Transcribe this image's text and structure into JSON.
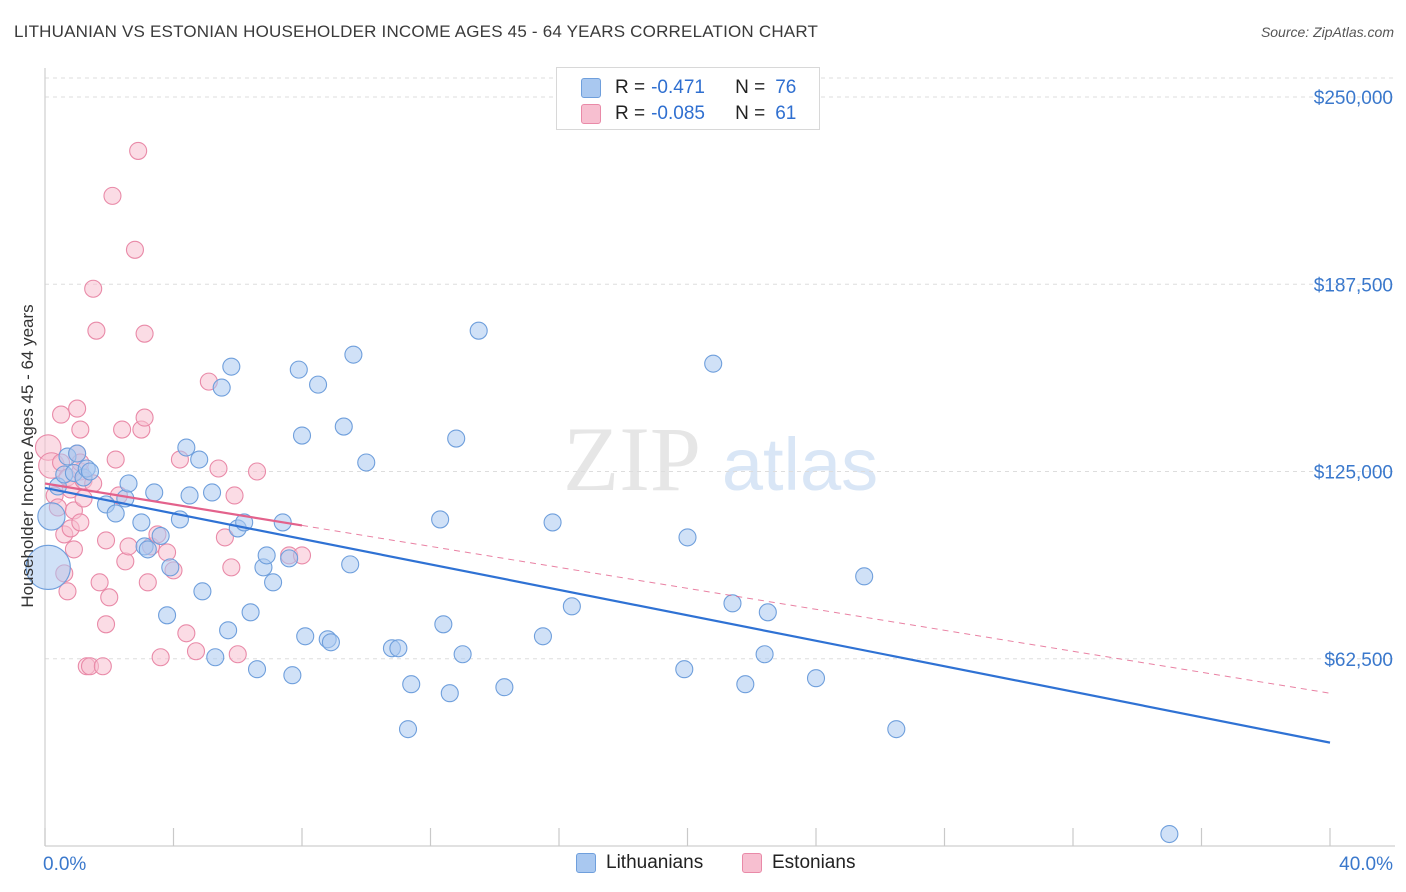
{
  "title": "LITHUANIAN VS ESTONIAN HOUSEHOLDER INCOME AGES 45 - 64 YEARS CORRELATION CHART",
  "source": "Source: ZipAtlas.com",
  "watermark": {
    "zip": "ZIP",
    "atlas": "atlas"
  },
  "legend": {
    "rows": [
      {
        "r_label": "R =",
        "r_value": "-0.471",
        "n_label": "N =",
        "n_value": "76"
      },
      {
        "r_label": "R =",
        "r_value": "-0.085",
        "n_label": "N =",
        "n_value": "61"
      }
    ]
  },
  "colors": {
    "blue_fill": "#a9c8f0",
    "blue_stroke": "#6f9fdc",
    "blue_line": "#2f72d4",
    "pink_fill": "#f7bfd0",
    "pink_stroke": "#e98aa8",
    "pink_line": "#e3628c",
    "tick_text": "#3a78cc",
    "grid": "#dddddd"
  },
  "chart_data": {
    "type": "scatter",
    "title": "LITHUANIAN VS ESTONIAN HOUSEHOLDER INCOME AGES 45 - 64 YEARS CORRELATION CHART",
    "xlabel": "",
    "ylabel": "Householder Income Ages 45 - 64 years",
    "xlim": [
      0,
      40
    ],
    "ylim": [
      0,
      262500
    ],
    "x_tick_labels": [
      "0.0%",
      "40.0%"
    ],
    "y_ticks": [
      62500,
      125000,
      187500,
      250000
    ],
    "y_tick_labels": [
      "$62,500",
      "$125,000",
      "$187,500",
      "$250,000"
    ],
    "grid": true,
    "legend_position": "top-center",
    "series": [
      {
        "name": "Lithuanians",
        "r": -0.471,
        "n": 76,
        "trend": {
          "x": [
            0,
            40
          ],
          "y": [
            119500,
            34500
          ],
          "style": "solid"
        },
        "points": [
          [
            0.1,
            93000,
            2.6
          ],
          [
            0.2,
            110000,
            1.6
          ],
          [
            0.4,
            120000,
            1
          ],
          [
            0.6,
            124000,
            1
          ],
          [
            0.7,
            130000,
            1
          ],
          [
            0.9,
            124500,
            1
          ],
          [
            1.0,
            131000,
            1
          ],
          [
            1.2,
            123000,
            1
          ],
          [
            1.3,
            126000,
            1
          ],
          [
            1.4,
            125000,
            1
          ],
          [
            1.9,
            114000,
            1
          ],
          [
            2.2,
            111000,
            1
          ],
          [
            2.5,
            116000,
            1
          ],
          [
            2.6,
            121000,
            1
          ],
          [
            3.0,
            108000,
            1
          ],
          [
            3.1,
            100000,
            1
          ],
          [
            3.2,
            99000,
            1
          ],
          [
            3.4,
            118000,
            1
          ],
          [
            3.6,
            103500,
            1
          ],
          [
            3.8,
            77000,
            1
          ],
          [
            3.9,
            93000,
            1
          ],
          [
            4.2,
            109000,
            1
          ],
          [
            4.4,
            133000,
            1
          ],
          [
            4.5,
            117000,
            1
          ],
          [
            4.8,
            129000,
            1
          ],
          [
            4.9,
            85000,
            1
          ],
          [
            5.2,
            118000,
            1
          ],
          [
            5.3,
            63000,
            1
          ],
          [
            5.5,
            153000,
            1
          ],
          [
            5.7,
            72000,
            1
          ],
          [
            5.8,
            160000,
            1
          ],
          [
            6.0,
            106000,
            1
          ],
          [
            6.2,
            108000,
            1
          ],
          [
            6.4,
            78000,
            1
          ],
          [
            6.6,
            59000,
            1
          ],
          [
            6.8,
            93000,
            1
          ],
          [
            6.9,
            97000,
            1
          ],
          [
            7.1,
            88000,
            1
          ],
          [
            7.4,
            108000,
            1
          ],
          [
            7.6,
            96000,
            1
          ],
          [
            7.7,
            57000,
            1
          ],
          [
            7.9,
            159000,
            1
          ],
          [
            8.0,
            137000,
            1
          ],
          [
            8.1,
            70000,
            1
          ],
          [
            8.5,
            154000,
            1
          ],
          [
            8.8,
            69000,
            1
          ],
          [
            8.9,
            68000,
            1
          ],
          [
            9.3,
            140000,
            1
          ],
          [
            9.5,
            94000,
            1
          ],
          [
            9.6,
            164000,
            1
          ],
          [
            10.0,
            128000,
            1
          ],
          [
            10.8,
            66000,
            1
          ],
          [
            11.0,
            66000,
            1
          ],
          [
            11.3,
            39000,
            1
          ],
          [
            11.4,
            54000,
            1
          ],
          [
            12.3,
            109000,
            1
          ],
          [
            12.4,
            74000,
            1
          ],
          [
            12.6,
            51000,
            1
          ],
          [
            12.8,
            136000,
            1
          ],
          [
            13.0,
            64000,
            1
          ],
          [
            13.5,
            172000,
            1
          ],
          [
            14.3,
            53000,
            1
          ],
          [
            15.5,
            70000,
            1
          ],
          [
            15.8,
            108000,
            1
          ],
          [
            16.4,
            80000,
            1
          ],
          [
            19.9,
            59000,
            1
          ],
          [
            20.0,
            103000,
            1
          ],
          [
            20.8,
            161000,
            1
          ],
          [
            21.4,
            81000,
            1
          ],
          [
            21.8,
            54000,
            1
          ],
          [
            22.4,
            64000,
            1
          ],
          [
            22.5,
            78000,
            1
          ],
          [
            24.0,
            56000,
            1
          ],
          [
            25.5,
            90000,
            1
          ],
          [
            26.5,
            39000,
            1
          ],
          [
            35.0,
            4000,
            1
          ]
        ]
      },
      {
        "name": "Estonians",
        "r": -0.085,
        "n": 61,
        "trend": {
          "x": [
            0,
            40
          ],
          "y": [
            121000,
            51000
          ],
          "solid_until": 8,
          "style": "solid-then-dashed"
        },
        "points": [
          [
            0.1,
            133000,
            1.5
          ],
          [
            0.2,
            127000,
            1.5
          ],
          [
            0.3,
            117000,
            1
          ],
          [
            0.4,
            113000,
            1
          ],
          [
            0.5,
            144000,
            1
          ],
          [
            0.5,
            128000,
            1
          ],
          [
            0.6,
            104000,
            1
          ],
          [
            0.6,
            91000,
            1
          ],
          [
            0.7,
            123000,
            1
          ],
          [
            0.7,
            85000,
            1
          ],
          [
            0.8,
            106000,
            1
          ],
          [
            0.8,
            119000,
            1
          ],
          [
            0.9,
            112000,
            1
          ],
          [
            0.9,
            99000,
            1
          ],
          [
            1.0,
            146000,
            1
          ],
          [
            1.0,
            131000,
            1
          ],
          [
            1.1,
            125000,
            1
          ],
          [
            1.1,
            108000,
            1
          ],
          [
            1.1,
            128000,
            1
          ],
          [
            1.1,
            139000,
            1
          ],
          [
            1.2,
            122000,
            1
          ],
          [
            1.2,
            116000,
            1
          ],
          [
            1.3,
            60000,
            1
          ],
          [
            1.4,
            60000,
            1
          ],
          [
            1.5,
            186000,
            1
          ],
          [
            1.5,
            121000,
            1
          ],
          [
            1.6,
            172000,
            1
          ],
          [
            1.7,
            88000,
            1
          ],
          [
            1.8,
            60000,
            1
          ],
          [
            1.9,
            102000,
            1
          ],
          [
            1.9,
            74000,
            1
          ],
          [
            2.0,
            83000,
            1
          ],
          [
            2.1,
            217000,
            1
          ],
          [
            2.2,
            129000,
            1
          ],
          [
            2.3,
            117000,
            1
          ],
          [
            2.4,
            139000,
            1
          ],
          [
            2.5,
            95000,
            1
          ],
          [
            2.6,
            100000,
            1
          ],
          [
            2.8,
            199000,
            1
          ],
          [
            2.9,
            232000,
            1
          ],
          [
            3.0,
            139000,
            1
          ],
          [
            3.1,
            143000,
            1
          ],
          [
            3.1,
            171000,
            1
          ],
          [
            3.2,
            88000,
            1
          ],
          [
            3.3,
            100000,
            1
          ],
          [
            3.5,
            104000,
            1
          ],
          [
            3.6,
            63000,
            1
          ],
          [
            3.8,
            98000,
            1
          ],
          [
            4.0,
            92000,
            1
          ],
          [
            4.2,
            129000,
            1
          ],
          [
            4.4,
            71000,
            1
          ],
          [
            4.7,
            65000,
            1
          ],
          [
            5.1,
            155000,
            1
          ],
          [
            5.4,
            126000,
            1
          ],
          [
            5.6,
            103000,
            1
          ],
          [
            5.8,
            93000,
            1
          ],
          [
            5.9,
            117000,
            1
          ],
          [
            6.0,
            64000,
            1
          ],
          [
            6.6,
            125000,
            1
          ],
          [
            7.6,
            97000,
            1
          ],
          [
            8.0,
            97000,
            1
          ]
        ]
      }
    ]
  }
}
